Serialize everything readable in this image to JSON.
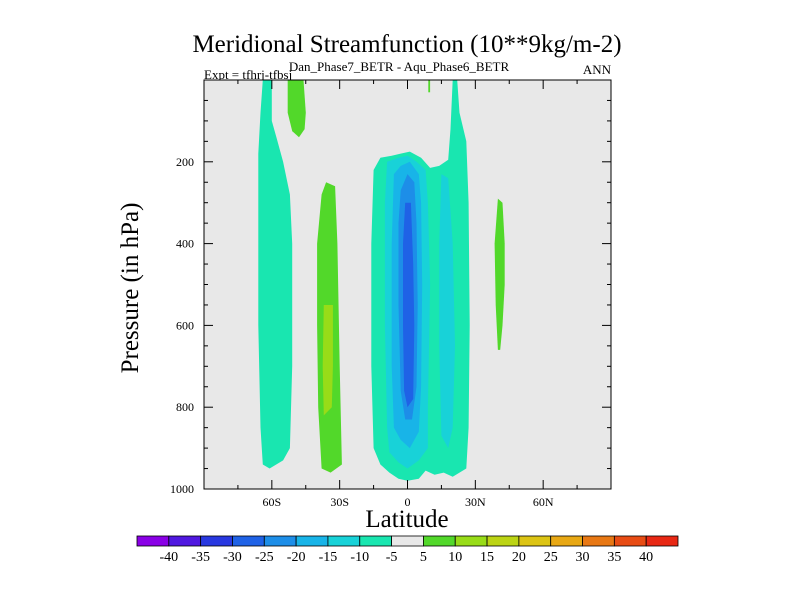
{
  "chart_data": {
    "type": "contour",
    "title": "Meridional Streamfunction (10**9kg/m-2)",
    "subtitle": "Dan_Phase7_BETR - Aqu_Phase6_BETR",
    "left_label": "Expt = tfhrj-tfbsj",
    "right_label": "ANN",
    "xlabel": "Latitude",
    "ylabel": "Pressure (in hPa)",
    "xlim": [
      -90,
      90
    ],
    "ylim": [
      1000,
      0
    ],
    "x_ticks": [
      {
        "value": -60,
        "label": "60S"
      },
      {
        "value": -30,
        "label": "30S"
      },
      {
        "value": 0,
        "label": "0"
      },
      {
        "value": 30,
        "label": "30N"
      },
      {
        "value": 60,
        "label": "60N"
      }
    ],
    "y_ticks": [
      {
        "value": 200,
        "label": "200"
      },
      {
        "value": 400,
        "label": "400"
      },
      {
        "value": 600,
        "label": "600"
      },
      {
        "value": 800,
        "label": "800"
      },
      {
        "value": 1000,
        "label": "1000"
      }
    ],
    "background_color": "#e8e8e8",
    "colorbar": {
      "levels": [
        -40,
        -35,
        -30,
        -25,
        -20,
        -15,
        -10,
        -5,
        5,
        10,
        15,
        20,
        25,
        30,
        35,
        40
      ],
      "labels": [
        "-40",
        "-35",
        "-30",
        "-25",
        "-20",
        "-15",
        "-10",
        "-5",
        "5",
        "10",
        "15",
        "20",
        "25",
        "30",
        "35",
        "40"
      ],
      "colors": [
        "#8a00e6",
        "#5018e0",
        "#2838e0",
        "#1f62e6",
        "#1d8ee8",
        "#18b4e8",
        "#18d2d8",
        "#19e6b0",
        "#e8e8e8",
        "#52d82a",
        "#98dc18",
        "#bcd414",
        "#dcc414",
        "#e8a814",
        "#e87814",
        "#e84c14",
        "#e82814"
      ]
    },
    "regions": [
      {
        "name": "sh-polar-band",
        "value": -7,
        "polygon": [
          [
            -64,
            0
          ],
          [
            -60,
            0
          ],
          [
            -60,
            100
          ],
          [
            -58,
            140
          ],
          [
            -55,
            200
          ],
          [
            -52,
            280
          ],
          [
            -51,
            400
          ],
          [
            -51,
            700
          ],
          [
            -52,
            900
          ],
          [
            -55,
            930
          ],
          [
            -61,
            950
          ],
          [
            -64,
            940
          ],
          [
            -65,
            850
          ],
          [
            -66,
            600
          ],
          [
            -66,
            400
          ],
          [
            -66,
            180
          ],
          [
            -65,
            80
          ]
        ]
      },
      {
        "name": "sh-polar-green",
        "value": 7,
        "polygon": [
          [
            -53,
            0
          ],
          [
            -46,
            0
          ],
          [
            -45,
            80
          ],
          [
            -45.5,
            120
          ],
          [
            -48,
            140
          ],
          [
            -51,
            125
          ],
          [
            -53,
            80
          ]
        ]
      },
      {
        "name": "sh-mid-green",
        "value": 7,
        "polygon": [
          [
            -38,
            280
          ],
          [
            -36,
            250
          ],
          [
            -32,
            260
          ],
          [
            -31,
            400
          ],
          [
            -30,
            700
          ],
          [
            -29,
            940
          ],
          [
            -34,
            960
          ],
          [
            -38,
            950
          ],
          [
            -39.5,
            800
          ],
          [
            -40,
            600
          ],
          [
            -40,
            400
          ]
        ]
      },
      {
        "name": "sh-mid-core",
        "value": 12,
        "polygon": [
          [
            -37,
            550
          ],
          [
            -33,
            550
          ],
          [
            -33,
            700
          ],
          [
            -33.5,
            800
          ],
          [
            -37,
            820
          ],
          [
            -37.5,
            700
          ]
        ]
      },
      {
        "name": "tropics-outer",
        "value": -7,
        "polygon": [
          [
            -15,
            220
          ],
          [
            -12,
            190
          ],
          [
            -7,
            185
          ],
          [
            -3,
            180
          ],
          [
            1,
            175
          ],
          [
            6,
            190
          ],
          [
            10,
            215
          ],
          [
            14,
            210
          ],
          [
            18,
            195
          ],
          [
            19,
            120
          ],
          [
            20,
            0
          ],
          [
            22,
            0
          ],
          [
            23,
            80
          ],
          [
            26,
            150
          ],
          [
            27,
            300
          ],
          [
            27.5,
            600
          ],
          [
            27,
            850
          ],
          [
            26,
            950
          ],
          [
            20,
            970
          ],
          [
            16,
            960
          ],
          [
            12,
            965
          ],
          [
            8,
            955
          ],
          [
            5,
            975
          ],
          [
            0,
            980
          ],
          [
            -4,
            975
          ],
          [
            -8,
            960
          ],
          [
            -12,
            940
          ],
          [
            -15,
            900
          ],
          [
            -16,
            700
          ],
          [
            -16,
            400
          ]
        ]
      },
      {
        "name": "tropics-l2",
        "value": -12,
        "polygon": [
          [
            -9,
            200
          ],
          [
            -4,
            190
          ],
          [
            0,
            185
          ],
          [
            4,
            200
          ],
          [
            8,
            220
          ],
          [
            9,
            300
          ],
          [
            10,
            500
          ],
          [
            9,
            800
          ],
          [
            9,
            900
          ],
          [
            5,
            930
          ],
          [
            0,
            950
          ],
          [
            -4,
            935
          ],
          [
            -8,
            910
          ],
          [
            -9,
            850
          ],
          [
            -10,
            600
          ],
          [
            -10,
            300
          ]
        ]
      },
      {
        "name": "tropics-l3",
        "value": -18,
        "polygon": [
          [
            -6,
            230
          ],
          [
            -3,
            210
          ],
          [
            1,
            200
          ],
          [
            5,
            230
          ],
          [
            6,
            300
          ],
          [
            6.5,
            500
          ],
          [
            6,
            750
          ],
          [
            5,
            860
          ],
          [
            1,
            900
          ],
          [
            -3,
            880
          ],
          [
            -6,
            850
          ],
          [
            -7,
            700
          ],
          [
            -7,
            400
          ]
        ]
      },
      {
        "name": "tropics-l4",
        "value": -23,
        "polygon": [
          [
            -3,
            270
          ],
          [
            0,
            230
          ],
          [
            3,
            250
          ],
          [
            4,
            350
          ],
          [
            4.5,
            550
          ],
          [
            4,
            750
          ],
          [
            2,
            830
          ],
          [
            -1,
            830
          ],
          [
            -3,
            760
          ],
          [
            -4,
            550
          ],
          [
            -4,
            350
          ]
        ]
      },
      {
        "name": "tropics-core",
        "value": -28,
        "polygon": [
          [
            -1,
            300
          ],
          [
            1.5,
            300
          ],
          [
            2.5,
            450
          ],
          [
            3,
            600
          ],
          [
            2.5,
            780
          ],
          [
            0,
            800
          ],
          [
            -1.5,
            760
          ],
          [
            -2,
            600
          ],
          [
            -2,
            400
          ]
        ]
      },
      {
        "name": "nh-tropics-band",
        "value": -12,
        "polygon": [
          [
            15,
            230
          ],
          [
            18,
            240
          ],
          [
            20,
            400
          ],
          [
            21,
            650
          ],
          [
            20,
            850
          ],
          [
            18,
            900
          ],
          [
            15,
            870
          ],
          [
            14,
            650
          ],
          [
            14,
            400
          ]
        ]
      },
      {
        "name": "eq-green-strip",
        "value": 7,
        "polygon": [
          [
            9.2,
            0
          ],
          [
            10,
            0
          ],
          [
            10,
            30
          ],
          [
            9.2,
            30
          ]
        ]
      },
      {
        "name": "nh-mid-green",
        "value": 7,
        "polygon": [
          [
            40,
            290
          ],
          [
            42,
            300
          ],
          [
            43,
            400
          ],
          [
            43,
            500
          ],
          [
            42,
            600
          ],
          [
            41,
            660
          ],
          [
            40,
            660
          ],
          [
            39,
            550
          ],
          [
            38.5,
            400
          ]
        ]
      }
    ]
  }
}
